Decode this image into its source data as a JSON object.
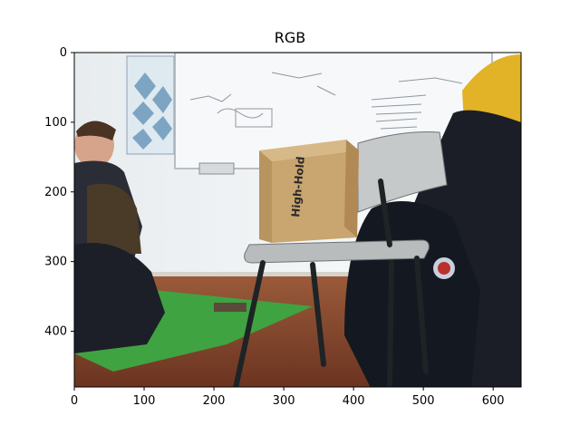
{
  "figure": {
    "title": "RGB",
    "image_size": {
      "width": 640,
      "height": 480
    },
    "x_axis": {
      "ticks": [
        "0",
        "100",
        "200",
        "300",
        "400",
        "500",
        "600"
      ],
      "values": [
        0,
        100,
        200,
        300,
        400,
        500,
        600
      ],
      "range": [
        0,
        640
      ]
    },
    "y_axis": {
      "ticks": [
        "0",
        "100",
        "200",
        "300",
        "400"
      ],
      "values": [
        0,
        100,
        200,
        300,
        400
      ],
      "range": [
        0,
        480
      ]
    },
    "image_content": {
      "labels": [
        "RGB"
      ],
      "scene": "Classroom photo: wall with whiteboard and poster, a grey chair with a cardboard box, a seated person on the left, a dark bag on the right, green mat on brown floor."
    },
    "colors": {
      "wall": "#eef1f3",
      "floor": "#8a4a2e",
      "mat": "#3fa341",
      "chair": "#b9bcbd",
      "box": "#c9a56f",
      "dark": "#1b1e26",
      "jacket_yellow": "#e2b227"
    }
  }
}
